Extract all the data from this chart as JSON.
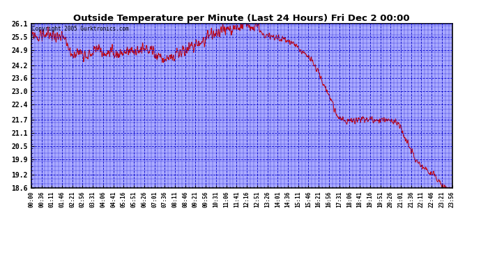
{
  "title": "Outside Temperature per Minute (Last 24 Hours) Fri Dec 2 00:00",
  "copyright": "Copyright 2005 Gurktronics.com",
  "background_color": "#ffffff",
  "plot_bg_color": "#aaaaff",
  "line_color": "#cc0000",
  "grid_color": "#0000cc",
  "yticks": [
    26.1,
    25.5,
    24.9,
    24.2,
    23.6,
    23.0,
    22.4,
    21.7,
    21.1,
    20.5,
    19.9,
    19.2,
    18.6
  ],
  "ymin": 18.6,
  "ymax": 26.1,
  "xtick_labels": [
    "00:00",
    "00:36",
    "01:11",
    "01:46",
    "02:21",
    "02:56",
    "03:31",
    "04:06",
    "04:41",
    "05:16",
    "05:51",
    "06:26",
    "07:01",
    "07:36",
    "08:11",
    "08:46",
    "09:21",
    "09:56",
    "10:31",
    "11:06",
    "11:41",
    "12:16",
    "12:51",
    "13:26",
    "14:01",
    "14:36",
    "15:11",
    "15:46",
    "16:21",
    "16:56",
    "17:31",
    "18:06",
    "18:41",
    "19:16",
    "19:51",
    "20:26",
    "21:01",
    "21:36",
    "22:11",
    "22:46",
    "23:21",
    "23:56"
  ],
  "figsize": [
    6.9,
    3.75
  ],
  "dpi": 100
}
